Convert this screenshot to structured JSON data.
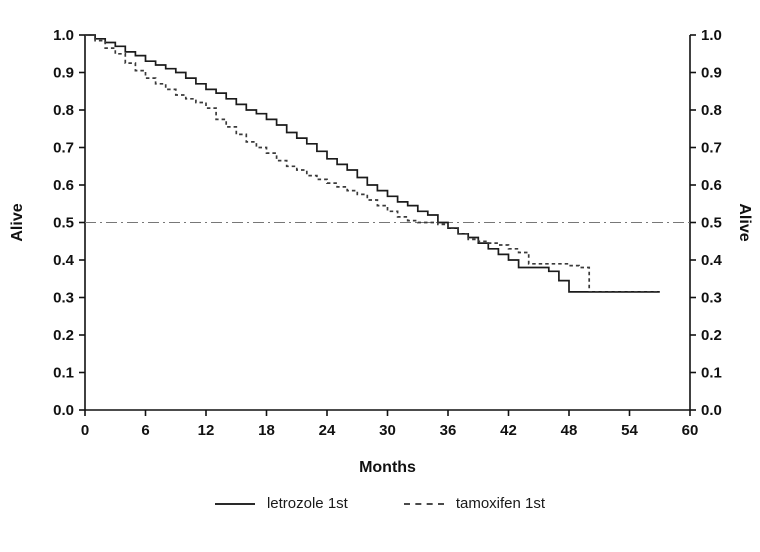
{
  "chart_data": {
    "type": "line",
    "subtype": "kaplan-meier-step",
    "title": "",
    "xlabel": "Months",
    "ylabel_left": "Alive",
    "ylabel_right": "Alive",
    "xlim": [
      0,
      60
    ],
    "ylim": [
      0.0,
      1.0
    ],
    "x_ticks": [
      0,
      6,
      12,
      18,
      24,
      30,
      36,
      42,
      48,
      54,
      60
    ],
    "y_ticks": [
      0.0,
      0.1,
      0.2,
      0.3,
      0.4,
      0.5,
      0.6,
      0.7,
      0.8,
      0.9,
      1.0
    ],
    "grid": false,
    "legend_position": "bottom",
    "reference_line": {
      "y": 0.5,
      "style": "dash-dot"
    },
    "series": [
      {
        "name": "letrozole 1st",
        "style": "solid",
        "x": [
          0,
          1,
          2,
          3,
          4,
          5,
          6,
          7,
          8,
          9,
          10,
          11,
          12,
          13,
          14,
          15,
          16,
          17,
          18,
          19,
          20,
          21,
          22,
          23,
          24,
          25,
          26,
          27,
          28,
          29,
          30,
          31,
          32,
          33,
          34,
          35,
          36,
          37,
          38,
          39,
          40,
          41,
          42,
          43,
          44,
          46,
          47,
          48,
          57
        ],
        "y": [
          1.0,
          0.99,
          0.98,
          0.97,
          0.955,
          0.945,
          0.93,
          0.92,
          0.91,
          0.9,
          0.885,
          0.87,
          0.855,
          0.845,
          0.83,
          0.815,
          0.8,
          0.79,
          0.775,
          0.76,
          0.74,
          0.725,
          0.71,
          0.69,
          0.67,
          0.655,
          0.64,
          0.62,
          0.6,
          0.585,
          0.57,
          0.555,
          0.545,
          0.53,
          0.52,
          0.5,
          0.485,
          0.47,
          0.46,
          0.445,
          0.43,
          0.415,
          0.4,
          0.38,
          0.38,
          0.37,
          0.345,
          0.315,
          0.315
        ]
      },
      {
        "name": "tamoxifen 1st",
        "style": "dashed",
        "x": [
          0,
          1,
          2,
          3,
          4,
          5,
          6,
          7,
          8,
          9,
          10,
          11,
          12,
          13,
          14,
          15,
          16,
          17,
          18,
          19,
          20,
          21,
          22,
          23,
          24,
          25,
          26,
          27,
          28,
          29,
          30,
          31,
          32,
          33,
          34,
          35,
          36,
          37,
          38,
          39,
          40,
          41,
          42,
          43,
          44,
          46,
          48,
          49,
          50,
          57
        ],
        "y": [
          1.0,
          0.985,
          0.965,
          0.95,
          0.925,
          0.905,
          0.885,
          0.87,
          0.855,
          0.84,
          0.83,
          0.82,
          0.805,
          0.775,
          0.755,
          0.735,
          0.715,
          0.7,
          0.685,
          0.665,
          0.65,
          0.64,
          0.625,
          0.615,
          0.605,
          0.595,
          0.585,
          0.575,
          0.56,
          0.545,
          0.53,
          0.515,
          0.505,
          0.5,
          0.5,
          0.495,
          0.485,
          0.47,
          0.455,
          0.45,
          0.445,
          0.44,
          0.43,
          0.42,
          0.39,
          0.39,
          0.385,
          0.38,
          0.315,
          0.315
        ]
      }
    ]
  },
  "colors": {
    "line_solid": "#1b1b1b",
    "line_dashed": "#3a3a3a",
    "reference": "#777777",
    "axis": "#111111",
    "background": "#ffffff"
  },
  "legend": {
    "items": [
      {
        "label": "letrozole 1st",
        "line": "solid"
      },
      {
        "label": "tamoxifen 1st",
        "line": "dashed"
      }
    ]
  }
}
